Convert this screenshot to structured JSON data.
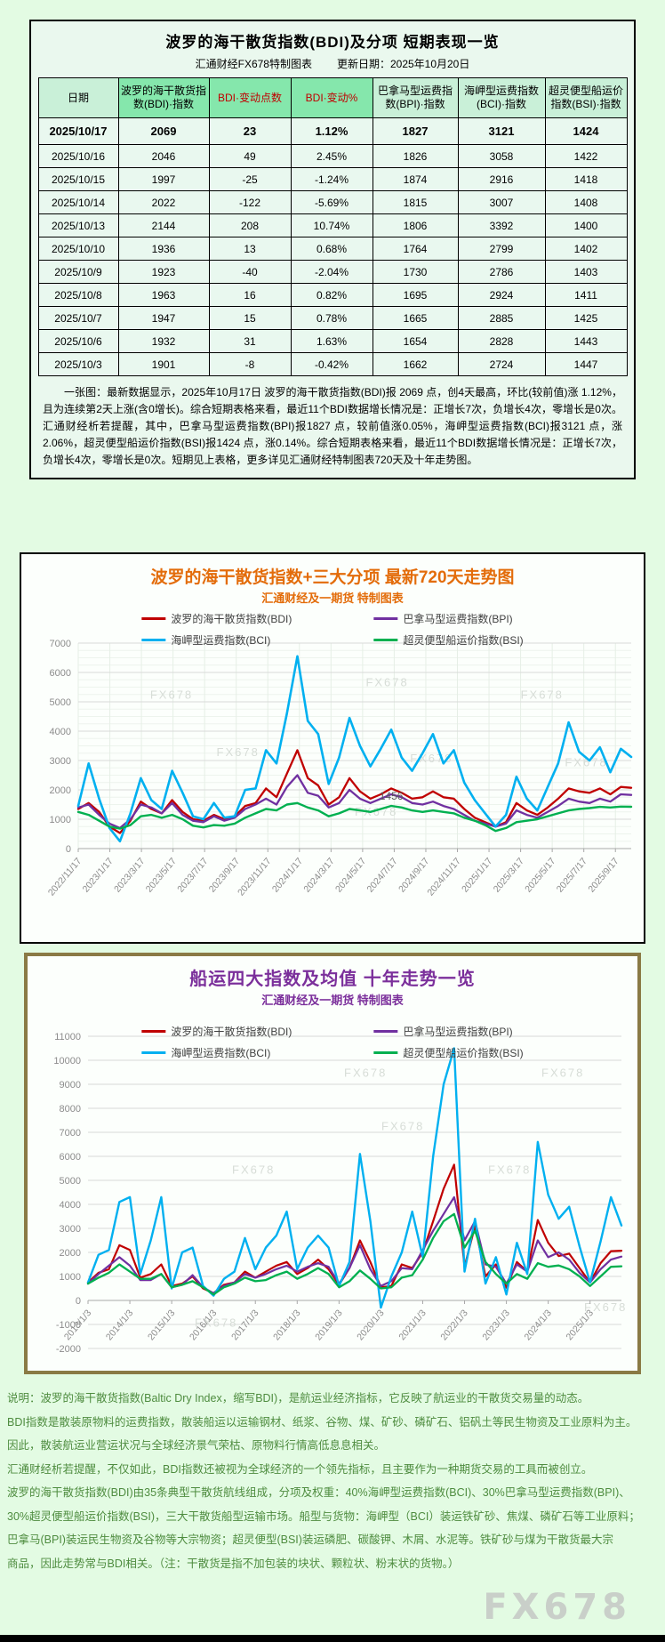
{
  "palette": {
    "page_bg": "#e3fbe3",
    "panel_bg": "#eaf8ee",
    "header_light_green": "#c9f0d8",
    "header_medium_green": "#85e7ac",
    "red": "#c00000",
    "purple": "#7030a0",
    "cyan": "#00b0f0",
    "green": "#00b050",
    "title_orange": "#e36c0a",
    "title_purple": "#7b2f9b",
    "footer_green": "#4e8c3f",
    "panel3_border": "#8a7a45"
  },
  "table_panel": {
    "title": "波罗的海干散货指数(BDI)及分项 短期表现一览",
    "subtitle_left": "汇通财经FX678特制图表",
    "subtitle_right": "更新日期：2025年10月20日",
    "columns": [
      "日期",
      "波罗的海干散货指数(BDI)·指数",
      "BDI·变动点数",
      "BDI·变动%",
      "巴拿马型运费指数(BPI)·指数",
      "海岬型运费指数(BCI)·指数",
      "超灵便型船运价指数(BSI)·指数"
    ],
    "rows": [
      [
        "2025/10/17",
        "2069",
        "23",
        "1.12%",
        "1827",
        "3121",
        "1424"
      ],
      [
        "2025/10/16",
        "2046",
        "49",
        "2.45%",
        "1826",
        "3058",
        "1422"
      ],
      [
        "2025/10/15",
        "1997",
        "-25",
        "-1.24%",
        "1874",
        "2916",
        "1418"
      ],
      [
        "2025/10/14",
        "2022",
        "-122",
        "-5.69%",
        "1815",
        "3007",
        "1408"
      ],
      [
        "2025/10/13",
        "2144",
        "208",
        "10.74%",
        "1806",
        "3392",
        "1400"
      ],
      [
        "2025/10/10",
        "1936",
        "13",
        "0.68%",
        "1764",
        "2799",
        "1402"
      ],
      [
        "2025/10/9",
        "1923",
        "-40",
        "-2.04%",
        "1730",
        "2786",
        "1403"
      ],
      [
        "2025/10/8",
        "1963",
        "16",
        "0.82%",
        "1695",
        "2924",
        "1411"
      ],
      [
        "2025/10/7",
        "1947",
        "15",
        "0.78%",
        "1665",
        "2885",
        "1425"
      ],
      [
        "2025/10/6",
        "1932",
        "31",
        "1.63%",
        "1654",
        "2828",
        "1443"
      ],
      [
        "2025/10/3",
        "1901",
        "-8",
        "-0.42%",
        "1662",
        "2724",
        "1447"
      ]
    ],
    "note": "一张图：最新数据显示，2025年10月17日 波罗的海干散货指数(BDI)报 2069 点，创4天最高，环比(较前值)涨 1.12%，且为连续第2天上涨(含0增长)。综合短期表格来看，最近11个BDI数据增长情况是：正增长7次，负增长4次，零增长是0次。汇通财经析若提醒，其中，巴拿马型运费指数(BPI)报1827 点，较前值涨0.05%，海岬型运费指数(BCI)报3121 点，涨2.06%，超灵便型船运价指数(BSI)报1424 点，涨0.14%。综合短期表格来看，最近11个BDI数据增长情况是：正增长7次，负增长4次，零增长是0次。短期见上表格，更多详见汇通财经特制图表720天及十年走势图。"
  },
  "chart_data": [
    {
      "type": "line",
      "title": "波罗的海干散货指数+三大分项  最新720天走势图",
      "subtitle": "汇通财经及一期货 特制图表",
      "ylim": [
        0,
        7000
      ],
      "ytick_step": 1000,
      "grid": true,
      "legend_position": "top-overlay",
      "watermark_text": "FX678",
      "watermarks": [
        [
          0.13,
          0.27
        ],
        [
          0.52,
          0.21
        ],
        [
          0.8,
          0.27
        ],
        [
          0.6,
          0.58
        ],
        [
          0.25,
          0.55
        ],
        [
          0.88,
          0.6
        ],
        [
          0.5,
          0.84
        ]
      ],
      "annotation": {
        "label": "1456",
        "series_index": 3,
        "point_index": 30
      },
      "label_step_frac": 0.057143,
      "x_ticklabels": [
        "2022/11/17",
        "2023/1/17",
        "2023/3/17",
        "2023/5/17",
        "2023/7/17",
        "2023/9/17",
        "2023/11/17",
        "2024/1/17",
        "2024/3/17",
        "2024/5/17",
        "2024/7/17",
        "2024/9/17",
        "2024/11/17",
        "2025/1/17",
        "2025/3/17",
        "2025/5/17",
        "2025/7/17",
        "2025/9/17"
      ],
      "series": [
        {
          "name": "波罗的海干散货指数(BDI)",
          "code": "bdi",
          "color": "#c00000",
          "width": 2.3,
          "values": [
            1350,
            1550,
            1250,
            750,
            530,
            950,
            1600,
            1350,
            1200,
            1650,
            1250,
            1000,
            950,
            1150,
            1000,
            1100,
            1450,
            1550,
            2050,
            1750,
            2550,
            3350,
            2400,
            2150,
            1500,
            1750,
            2400,
            1950,
            1700,
            1850,
            2050,
            1900,
            1700,
            1750,
            1950,
            1750,
            1700,
            1350,
            1050,
            900,
            750,
            900,
            1550,
            1300,
            1150,
            1400,
            1700,
            2050,
            1950,
            1900,
            2050,
            1850,
            2100,
            2069
          ]
        },
        {
          "name": "巴拿马型运费指数(BPI)",
          "code": "bpi",
          "color": "#7030a0",
          "width": 2.3,
          "values": [
            1400,
            1500,
            1150,
            850,
            700,
            1000,
            1500,
            1400,
            1200,
            1550,
            1150,
            950,
            900,
            1100,
            950,
            1050,
            1350,
            1500,
            1700,
            1500,
            2100,
            2500,
            1900,
            1800,
            1400,
            1550,
            2000,
            1700,
            1550,
            1700,
            1850,
            1750,
            1550,
            1500,
            1600,
            1450,
            1350,
            1150,
            950,
            850,
            750,
            850,
            1300,
            1150,
            1050,
            1250,
            1450,
            1700,
            1600,
            1550,
            1700,
            1600,
            1850,
            1827
          ]
        },
        {
          "name": "海岬型运费指数(BCI)",
          "code": "bci",
          "color": "#00b0f0",
          "width": 2.6,
          "values": [
            1450,
            2900,
            1700,
            700,
            250,
            1200,
            2400,
            1650,
            1350,
            2650,
            1900,
            1100,
            1000,
            1550,
            1050,
            1100,
            2000,
            2050,
            3350,
            2900,
            4600,
            6550,
            4350,
            3900,
            2200,
            3100,
            4450,
            3500,
            2800,
            3400,
            4050,
            3100,
            2650,
            3250,
            3900,
            2900,
            3350,
            2250,
            1650,
            1200,
            750,
            1150,
            2450,
            1700,
            1300,
            2100,
            2900,
            4300,
            3300,
            3000,
            3450,
            2600,
            3400,
            3121
          ]
        },
        {
          "name": "超灵便型船运价指数(BSI)",
          "code": "bsi",
          "color": "#00b050",
          "width": 2.4,
          "values": [
            1250,
            1150,
            950,
            750,
            680,
            800,
            1100,
            1150,
            1050,
            1150,
            1000,
            780,
            720,
            800,
            780,
            850,
            1050,
            1200,
            1350,
            1300,
            1500,
            1550,
            1400,
            1300,
            1100,
            1200,
            1350,
            1300,
            1250,
            1350,
            1456,
            1400,
            1300,
            1250,
            1300,
            1250,
            1200,
            1050,
            950,
            800,
            600,
            700,
            900,
            950,
            1000,
            1100,
            1200,
            1300,
            1350,
            1380,
            1420,
            1400,
            1430,
            1424
          ]
        }
      ]
    },
    {
      "type": "line",
      "title": "船运四大指数及均值 十年走势一览",
      "subtitle": "汇通财经及一期货 特制图表",
      "ylim": [
        -2000,
        11000
      ],
      "ytick_step": 1000,
      "grid": true,
      "legend_position": "top-overlay",
      "watermark_text": "FX678",
      "watermarks": [
        [
          0.55,
          0.3
        ],
        [
          0.27,
          0.44
        ],
        [
          0.85,
          0.13
        ],
        [
          0.48,
          0.13
        ],
        [
          0.2,
          0.93
        ],
        [
          0.93,
          0.88
        ],
        [
          0.75,
          0.44
        ]
      ],
      "annotation": null,
      "label_step_frac": 0.078431,
      "x_ticklabels": [
        "2013/1/3",
        "2014/1/3",
        "2015/1/3",
        "2016/1/3",
        "2017/1/3",
        "2018/1/3",
        "2019/1/3",
        "2020/1/3",
        "2021/1/3",
        "2022/1/3",
        "2023/1/3",
        "2024/1/3",
        "2025/1/3"
      ],
      "series": [
        {
          "name": "波罗的海干散货指数(BDI)",
          "code": "bdi",
          "color": "#c00000",
          "width": 2.2,
          "values": [
            750,
            1150,
            1300,
            2300,
            2100,
            950,
            1100,
            1500,
            600,
            700,
            1000,
            500,
            300,
            650,
            750,
            1200,
            950,
            1200,
            1450,
            1600,
            1100,
            1350,
            1700,
            1300,
            650,
            1350,
            2500,
            1600,
            550,
            600,
            1500,
            1350,
            2000,
            3300,
            4650,
            5650,
            1400,
            3100,
            1000,
            1500,
            530,
            1600,
            1200,
            3350,
            2400,
            1850,
            1950,
            1350,
            750,
            1550,
            2050,
            2069
          ]
        },
        {
          "name": "巴拿马型运费指数(BPI)",
          "code": "bpi",
          "color": "#7030a0",
          "width": 2.2,
          "values": [
            700,
            1100,
            1450,
            1800,
            1450,
            850,
            850,
            1100,
            550,
            650,
            1050,
            550,
            300,
            600,
            750,
            1100,
            950,
            1100,
            1300,
            1450,
            1200,
            1400,
            1550,
            1400,
            700,
            1350,
            2300,
            1300,
            600,
            800,
            1350,
            1300,
            2100,
            2900,
            3600,
            4300,
            2500,
            3300,
            1500,
            1400,
            700,
            1500,
            1200,
            2500,
            1800,
            2000,
            1700,
            1150,
            750,
            1300,
            1700,
            1827
          ]
        },
        {
          "name": "海岬型运费指数(BCI)",
          "code": "bci",
          "color": "#00b0f0",
          "width": 2.4,
          "values": [
            750,
            1900,
            2100,
            4100,
            4300,
            1100,
            2500,
            4300,
            500,
            2000,
            2200,
            600,
            200,
            900,
            1200,
            2600,
            1300,
            2200,
            2700,
            3700,
            1300,
            2200,
            2700,
            2200,
            600,
            1600,
            6100,
            3300,
            -300,
            1000,
            2000,
            3700,
            1800,
            6000,
            9000,
            10500,
            1200,
            3400,
            700,
            1800,
            250,
            2400,
            1100,
            6600,
            4400,
            3400,
            3900,
            2250,
            750,
            2450,
            4300,
            3121
          ]
        },
        {
          "name": "超灵便型船运价指数(BSI)",
          "code": "bsi",
          "color": "#00b050",
          "width": 2.3,
          "values": [
            700,
            950,
            1150,
            1500,
            1200,
            900,
            900,
            1100,
            550,
            650,
            800,
            550,
            250,
            550,
            700,
            950,
            800,
            850,
            1050,
            1200,
            900,
            1100,
            1350,
            1100,
            550,
            800,
            1250,
            900,
            500,
            550,
            950,
            1050,
            1700,
            2600,
            3300,
            3600,
            2200,
            2900,
            1600,
            1100,
            700,
            1100,
            900,
            1550,
            1400,
            1456,
            1300,
            1000,
            600,
            1000,
            1400,
            1424
          ]
        }
      ]
    }
  ],
  "footer": {
    "lines": [
      "说明：波罗的海干散货指数(Baltic Dry Index，缩写BDI)，是航运业经济指标，它反映了航运业的干散货交易量的动态。",
      "BDI指数是散装原物料的运费指数，散装船运以运输钢材、纸浆、谷物、煤、矿砂、磷矿石、铝矾土等民生物资及工业原料为主。",
      "因此，散装航运业营运状况与全球经济景气荣枯、原物料行情高低息息相关。",
      "汇通财经析若提醒，不仅如此，BDI指数还被视为全球经济的一个领先指标，且主要作为一种期货交易的工具而被创立。",
      "波罗的海干散货指数(BDI)由35条典型干散货航线组成，分项及权重：40%海岬型运费指数(BCI)、30%巴拿马型运费指数(BPI)、",
      "30%超灵便型船运价指数(BSI)，三大干散货船型运输市场。船型与货物：海岬型（BCI）装运铁矿砂、焦煤、磷矿石等工业原料；",
      "巴拿马(BPI)装运民生物资及谷物等大宗物资；超灵便型(BSI)装运磷肥、碳酸钾、木屑、水泥等。铁矿砂与煤为干散货最大宗",
      "商品，因此走势常与BDI相关。（注：干散货是指不加包装的块状、颗粒状、粉末状的货物。）"
    ],
    "watermark": "FX678"
  }
}
